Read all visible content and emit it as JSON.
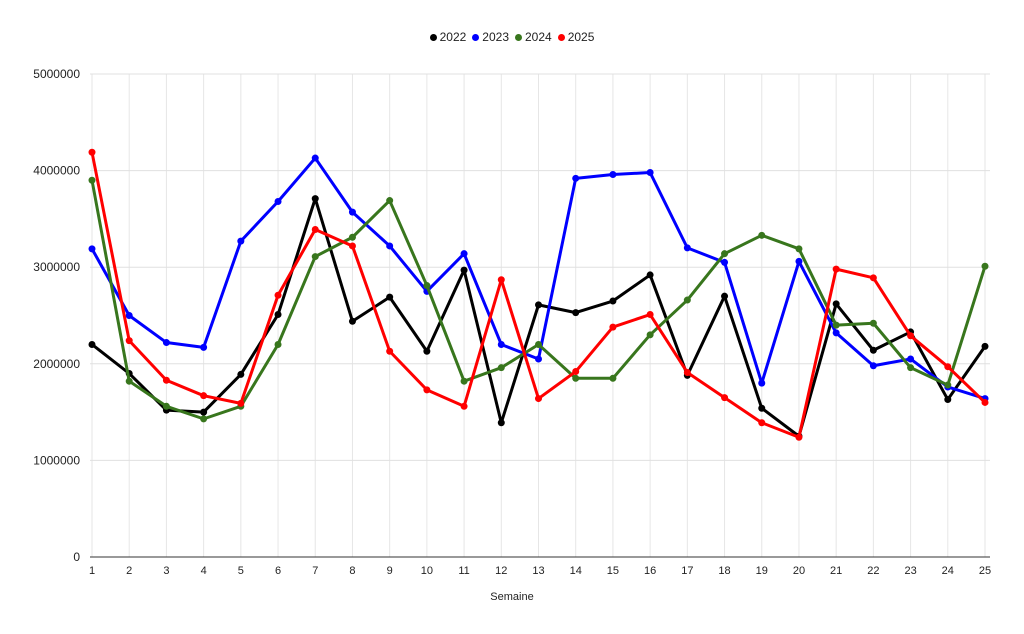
{
  "chart_data": {
    "type": "line",
    "title": "",
    "xlabel": "Semaine",
    "ylabel": "",
    "x": [
      1,
      2,
      3,
      4,
      5,
      6,
      7,
      8,
      9,
      10,
      11,
      12,
      13,
      14,
      15,
      16,
      17,
      18,
      19,
      20,
      21,
      22,
      23,
      24,
      25
    ],
    "ylim": [
      0,
      5000000
    ],
    "yticks": [
      0,
      1000000,
      2000000,
      3000000,
      4000000,
      5000000
    ],
    "grid": true,
    "legend_position": "top-center",
    "series": [
      {
        "name": "2022",
        "color": "#000000",
        "values": [
          2200000,
          1900000,
          1520000,
          1500000,
          1890000,
          2510000,
          3710000,
          2440000,
          2690000,
          2130000,
          2970000,
          1390000,
          2610000,
          2530000,
          2650000,
          2920000,
          1880000,
          2700000,
          1540000,
          1250000,
          2620000,
          2140000,
          2330000,
          1630000,
          2180000
        ]
      },
      {
        "name": "2023",
        "color": "#0000ff",
        "values": [
          3190000,
          2500000,
          2220000,
          2170000,
          3270000,
          3680000,
          4130000,
          3570000,
          3220000,
          2750000,
          3140000,
          2200000,
          2050000,
          3920000,
          3960000,
          3980000,
          3200000,
          3050000,
          1800000,
          3060000,
          2320000,
          1980000,
          2050000,
          1760000,
          1640000
        ]
      },
      {
        "name": "2024",
        "color": "#38761d",
        "values": [
          3900000,
          1820000,
          1560000,
          1430000,
          1560000,
          2200000,
          3110000,
          3310000,
          3690000,
          2810000,
          1820000,
          1960000,
          2200000,
          1850000,
          1850000,
          2300000,
          2660000,
          3140000,
          3330000,
          3190000,
          2400000,
          2420000,
          1960000,
          1780000,
          3010000
        ]
      },
      {
        "name": "2025",
        "color": "#ff0000",
        "values": [
          4190000,
          2240000,
          1830000,
          1670000,
          1590000,
          2710000,
          3390000,
          3220000,
          2130000,
          1730000,
          1560000,
          2870000,
          1640000,
          1920000,
          2380000,
          2510000,
          1910000,
          1650000,
          1390000,
          1240000,
          2980000,
          2890000,
          2290000,
          1970000,
          1600000
        ]
      }
    ]
  }
}
